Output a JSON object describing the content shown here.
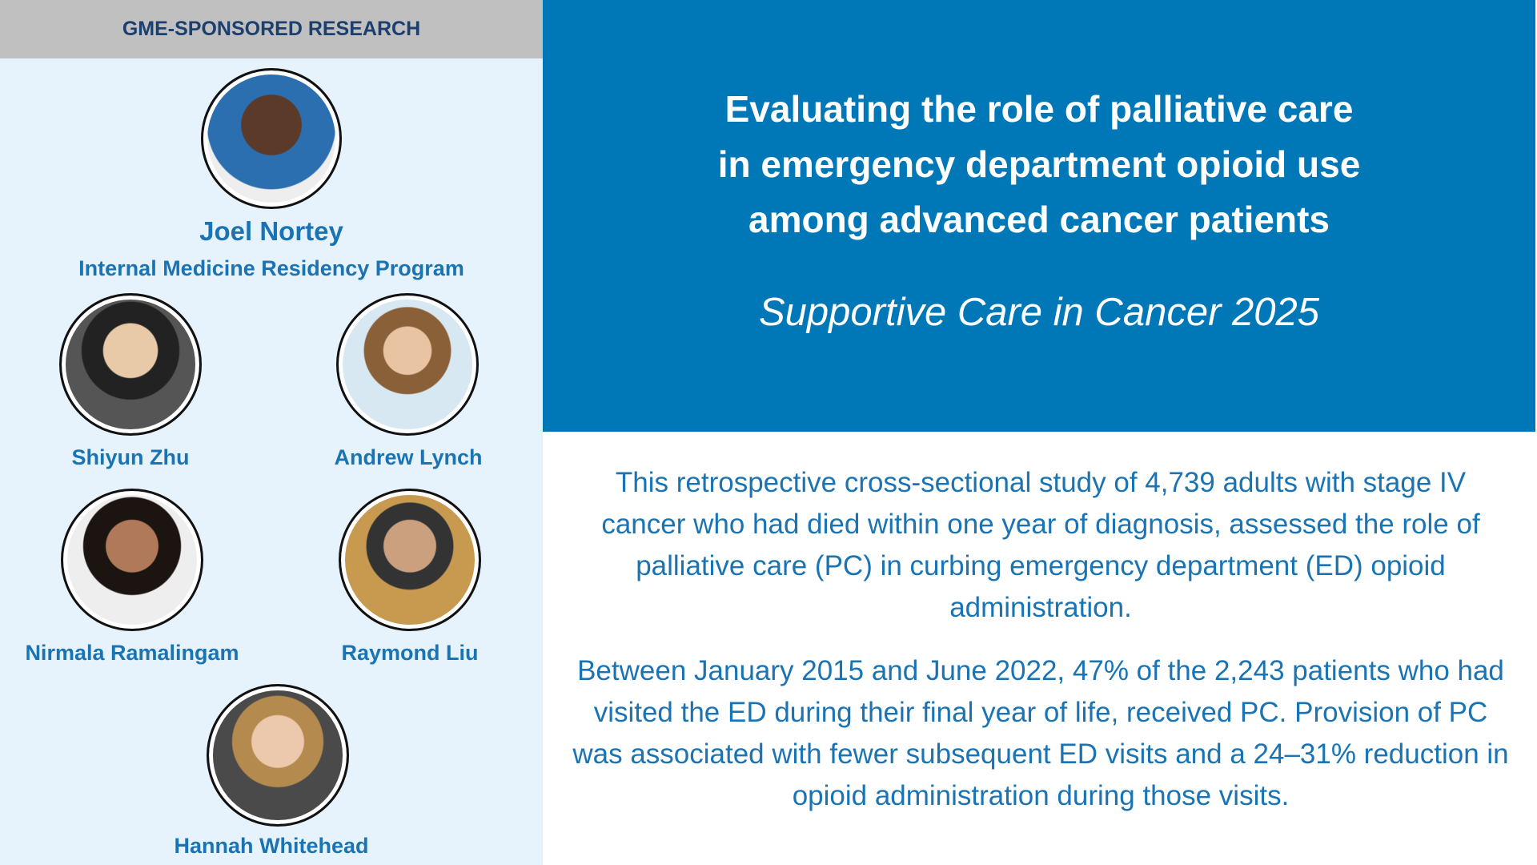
{
  "header": {
    "title": "GME-SPONSORED RESEARCH"
  },
  "featured_author": {
    "name": "Joel Nortey",
    "program": "Internal Medicine Residency Program"
  },
  "authors": [
    "Shiyun Zhu",
    "Andrew Lynch",
    "Nirmala Ramalingam",
    "Raymond Liu",
    "Hannah Whitehead"
  ],
  "article": {
    "title_lines": [
      "Evaluating the role of palliative care",
      "in emergency department opioid use",
      "among advanced cancer patients"
    ],
    "journal": "Supportive Care in Cancer 2025",
    "paragraphs": [
      "This retrospective cross-sectional study of 4,739 adults with stage IV cancer who had died within one year of diagnosis, assessed the role of palliative care (PC) in curbing emergency department (ED) opioid administration.",
      "Between January 2015 and June 2022, 47% of the 2,243 patients who had visited the ED during their final year of life, received PC. Provision of PC was associated with fewer subsequent ED visits and a 24–31% reduction in opioid administration during those visits."
    ]
  }
}
